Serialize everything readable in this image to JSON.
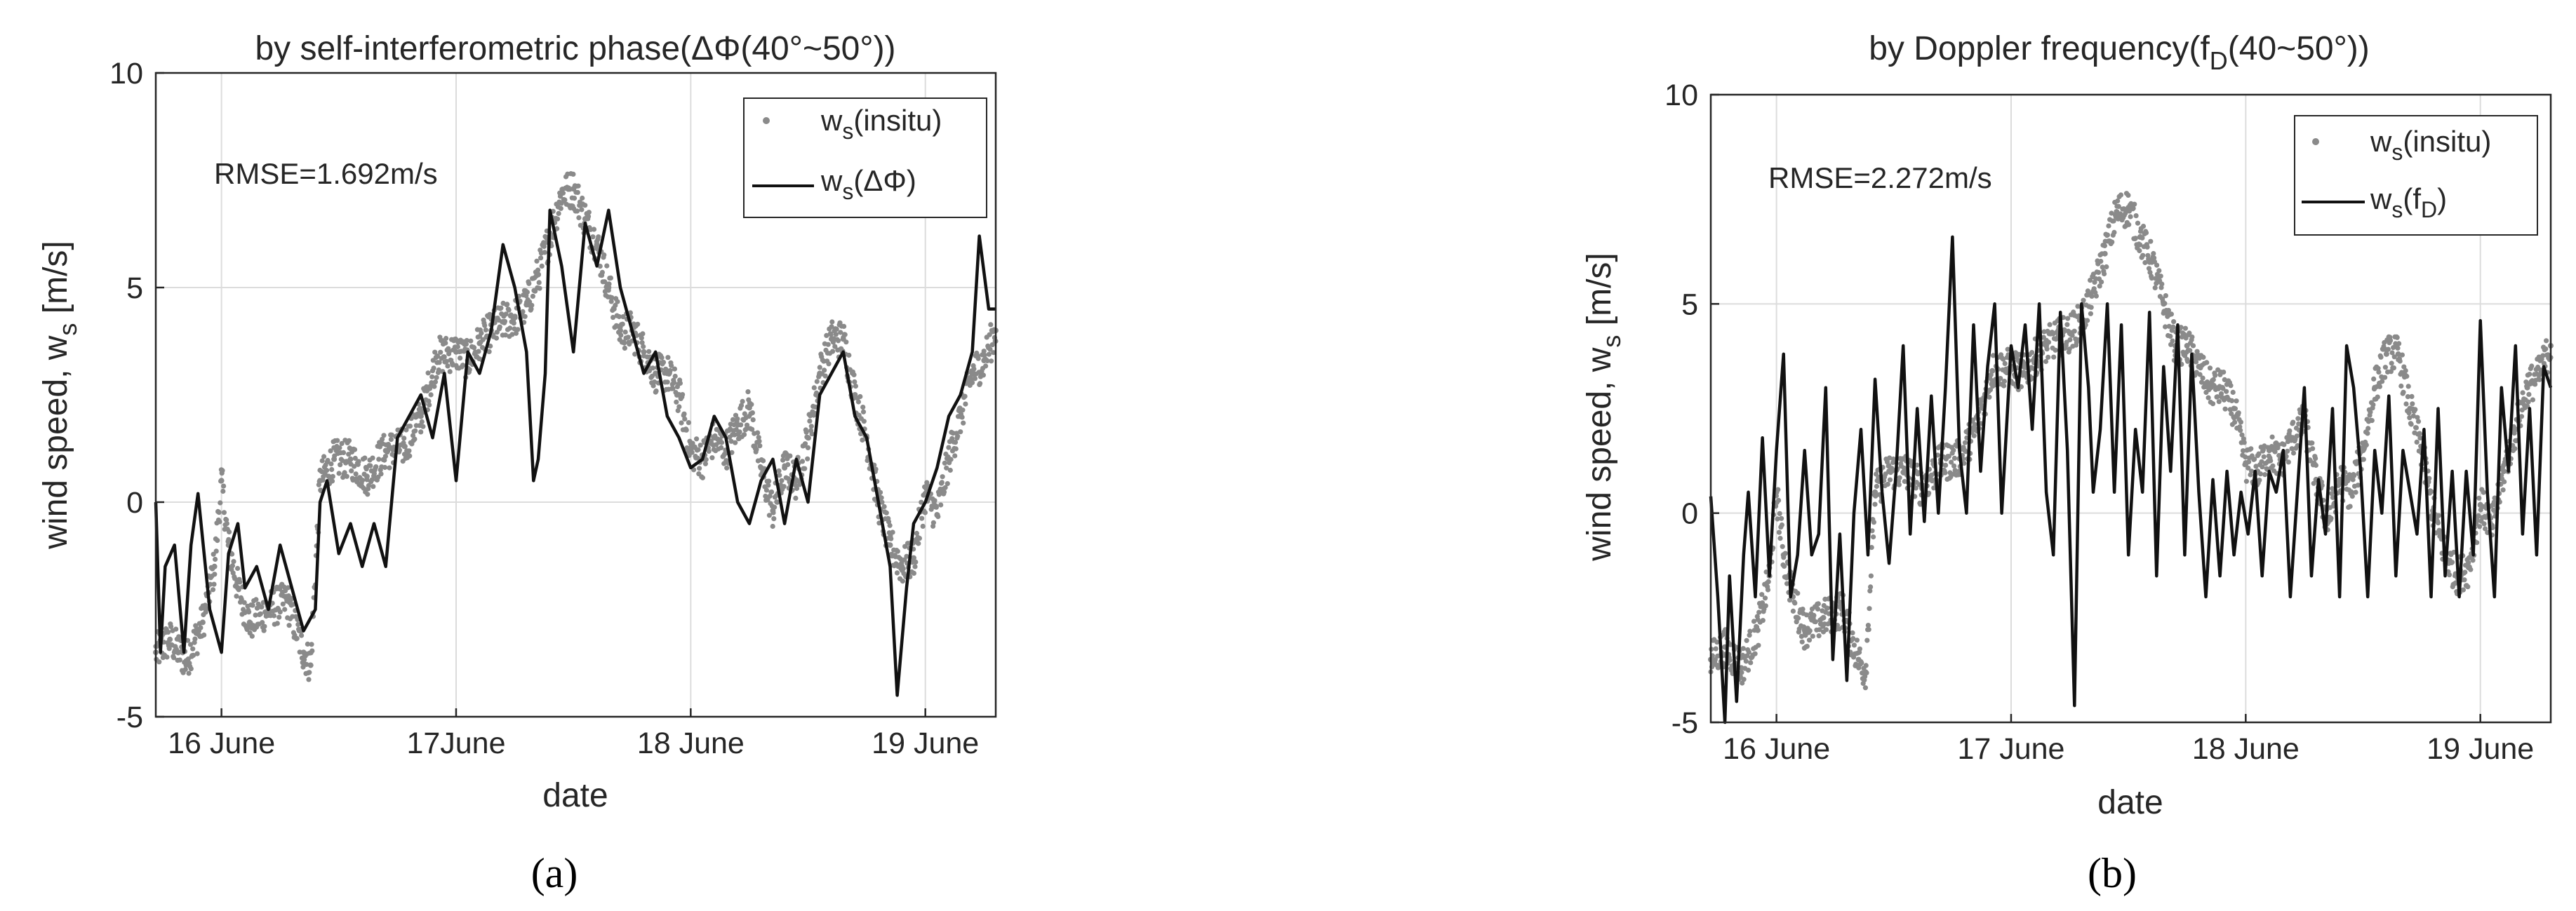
{
  "figure": {
    "panels": [
      {
        "caption": "(a)",
        "title": "by self-interferometric phase(ΔΦ(40°~50°))",
        "rmse": "RMSE=1.692m/s",
        "xlabel": "date",
        "ylabel": "wind speed, w",
        "ylabel_sub": "s",
        "ylabel_unit": " [m/s]",
        "legend": [
          {
            "main": "w",
            "sub": "s",
            "tail": "(insitu)"
          },
          {
            "main": "w",
            "sub": "s",
            "tail": "(ΔΦ)"
          }
        ]
      },
      {
        "caption": "(b)",
        "title": "by Doppler frequency(f",
        "title_sub": "D",
        "title_tail": "(40~50°))",
        "rmse": "RMSE=2.272m/s",
        "xlabel": "date",
        "ylabel": "wind speed, w",
        "ylabel_sub": "s",
        "ylabel_unit": " [m/s]",
        "legend": [
          {
            "main": "w",
            "sub": "s",
            "tail": "(insitu)"
          },
          {
            "main": "w",
            "sub": "s",
            "tail": "(f",
            "sub2": "D",
            "tail2": ")"
          }
        ]
      }
    ]
  },
  "chart_data": [
    {
      "type": "line",
      "title": "by self-interferometric phase(ΔΦ(40°~50°))",
      "xlabel": "date",
      "ylabel": "wind speed, ws [m/s]",
      "xlim": [
        15.72,
        19.3
      ],
      "ylim": [
        -5,
        10
      ],
      "x_ticks": [
        {
          "x": 16,
          "label": "16 June"
        },
        {
          "x": 17,
          "label": "17June"
        },
        {
          "x": 18,
          "label": "18 June"
        },
        {
          "x": 19,
          "label": "19 June"
        }
      ],
      "y_ticks": [
        {
          "y": -5,
          "label": "-5"
        },
        {
          "y": 0,
          "label": "0"
        },
        {
          "y": 5,
          "label": "5"
        },
        {
          "y": 10,
          "label": "10"
        }
      ],
      "grid": true,
      "legend_position": "top-right",
      "colors": {
        "insitu": "#8a8a8a",
        "retrieved": "#111111"
      },
      "series": [
        {
          "name": "ws(insitu)",
          "style": "scatter",
          "x": [
            15.72,
            15.78,
            15.85,
            15.92,
            15.97,
            16.0,
            16.03,
            16.07,
            16.12,
            16.2,
            16.28,
            16.35,
            16.38,
            16.42,
            16.48,
            16.55,
            16.62,
            16.7,
            16.78,
            16.85,
            16.92,
            17.0,
            17.05,
            17.1,
            17.15,
            17.2,
            17.25,
            17.3,
            17.35,
            17.4,
            17.45,
            17.5,
            17.55,
            17.6,
            17.65,
            17.7,
            17.75,
            17.8,
            17.85,
            17.9,
            17.95,
            18.0,
            18.05,
            18.1,
            18.15,
            18.2,
            18.25,
            18.3,
            18.35,
            18.4,
            18.45,
            18.5,
            18.55,
            18.6,
            18.65,
            18.7,
            18.75,
            18.8,
            18.85,
            18.9,
            18.95,
            19.0,
            19.05,
            19.1,
            19.15,
            19.2,
            19.25,
            19.3
          ],
          "y": [
            -3.5,
            -3.2,
            -3.7,
            -2.8,
            -1.5,
            0.5,
            -1.0,
            -2.0,
            -2.8,
            -2.5,
            -2.3,
            -3.5,
            -3.8,
            0.5,
            1.0,
            1.0,
            0.6,
            1.2,
            1.3,
            2.0,
            3.4,
            3.5,
            3.3,
            3.7,
            4.0,
            4.2,
            4.3,
            4.6,
            5.3,
            6.2,
            7.2,
            7.3,
            6.6,
            6.0,
            5.0,
            4.0,
            4.0,
            3.5,
            3.0,
            3.0,
            2.5,
            1.2,
            1.0,
            1.5,
            1.2,
            1.8,
            2.2,
            0.8,
            -0.2,
            0.8,
            0.5,
            1.5,
            3.0,
            3.8,
            3.8,
            2.5,
            1.5,
            0.0,
            -1.0,
            -1.5,
            -1.3,
            0.2,
            -0.3,
            1.0,
            2.0,
            3.0,
            3.3,
            4.0
          ]
        },
        {
          "name": "ws(ΔΦ)",
          "style": "line",
          "x": [
            15.72,
            15.74,
            15.76,
            15.8,
            15.84,
            15.87,
            15.9,
            15.95,
            16.0,
            16.03,
            16.07,
            16.1,
            16.15,
            16.2,
            16.25,
            16.3,
            16.35,
            16.4,
            16.42,
            16.45,
            16.5,
            16.55,
            16.6,
            16.65,
            16.7,
            16.75,
            16.8,
            16.85,
            16.9,
            16.95,
            17.0,
            17.05,
            17.1,
            17.15,
            17.2,
            17.25,
            17.3,
            17.33,
            17.35,
            17.38,
            17.4,
            17.45,
            17.5,
            17.55,
            17.6,
            17.65,
            17.7,
            17.75,
            17.8,
            17.85,
            17.9,
            17.95,
            18.0,
            18.05,
            18.1,
            18.15,
            18.2,
            18.25,
            18.3,
            18.35,
            18.4,
            18.45,
            18.5,
            18.55,
            18.6,
            18.65,
            18.7,
            18.75,
            18.8,
            18.85,
            18.88,
            18.92,
            18.95,
            19.0,
            19.05,
            19.1,
            19.15,
            19.2,
            19.23,
            19.27,
            19.3
          ],
          "y": [
            0.0,
            -3.5,
            -1.5,
            -1.0,
            -3.5,
            -1.0,
            0.2,
            -2.5,
            -3.5,
            -1.2,
            -0.5,
            -2.0,
            -1.5,
            -2.5,
            -1.0,
            -2.0,
            -3.0,
            -2.5,
            0.0,
            0.5,
            -1.2,
            -0.5,
            -1.5,
            -0.5,
            -1.5,
            1.5,
            2.0,
            2.5,
            1.5,
            3.0,
            0.5,
            3.5,
            3.0,
            4.0,
            6.0,
            5.0,
            3.5,
            0.5,
            1.0,
            3.0,
            6.8,
            5.5,
            3.5,
            6.5,
            5.5,
            6.8,
            5.0,
            4.0,
            3.0,
            3.5,
            2.0,
            1.5,
            0.8,
            1.0,
            2.0,
            1.5,
            0.0,
            -0.5,
            0.5,
            1.0,
            -0.5,
            1.0,
            0.0,
            2.5,
            3.0,
            3.5,
            2.0,
            1.5,
            0.0,
            -1.5,
            -4.5,
            -2.0,
            -0.5,
            0.0,
            0.8,
            2.0,
            2.5,
            3.5,
            6.2,
            4.5,
            4.5
          ]
        }
      ]
    },
    {
      "type": "line",
      "title": "by Doppler frequency(fD(40~50°))",
      "xlabel": "date",
      "ylabel": "wind speed, ws [m/s]",
      "xlim": [
        15.72,
        19.3
      ],
      "ylim": [
        -5,
        10
      ],
      "x_ticks": [
        {
          "x": 16,
          "label": "16 June"
        },
        {
          "x": 17,
          "label": "17 June"
        },
        {
          "x": 18,
          "label": "18 June"
        },
        {
          "x": 19,
          "label": "19 June"
        }
      ],
      "y_ticks": [
        {
          "y": -5,
          "label": "-5"
        },
        {
          "y": 0,
          "label": "0"
        },
        {
          "y": 5,
          "label": "5"
        },
        {
          "y": 10,
          "label": "10"
        }
      ],
      "grid": true,
      "legend_position": "top-right",
      "colors": {
        "insitu": "#8a8a8a",
        "retrieved": "#111111"
      },
      "series": [
        {
          "name": "ws(insitu)",
          "style": "scatter",
          "x": [
            15.72,
            15.78,
            15.85,
            15.92,
            15.97,
            16.0,
            16.03,
            16.07,
            16.12,
            16.2,
            16.28,
            16.35,
            16.38,
            16.42,
            16.48,
            16.55,
            16.62,
            16.7,
            16.78,
            16.85,
            16.92,
            17.0,
            17.05,
            17.1,
            17.15,
            17.2,
            17.25,
            17.3,
            17.35,
            17.4,
            17.45,
            17.5,
            17.55,
            17.6,
            17.65,
            17.7,
            17.75,
            17.8,
            17.85,
            17.9,
            17.95,
            18.0,
            18.05,
            18.1,
            18.15,
            18.2,
            18.25,
            18.3,
            18.35,
            18.4,
            18.45,
            18.5,
            18.55,
            18.6,
            18.65,
            18.7,
            18.75,
            18.8,
            18.85,
            18.9,
            18.95,
            19.0,
            19.05,
            19.1,
            19.15,
            19.2,
            19.25,
            19.3
          ],
          "y": [
            -3.5,
            -3.2,
            -3.7,
            -2.8,
            -1.5,
            0.5,
            -1.0,
            -2.0,
            -2.8,
            -2.5,
            -2.3,
            -3.5,
            -3.8,
            0.5,
            1.0,
            1.0,
            0.6,
            1.2,
            1.3,
            2.0,
            3.4,
            3.5,
            3.3,
            3.7,
            4.0,
            4.2,
            4.3,
            4.6,
            5.3,
            6.2,
            7.2,
            7.3,
            6.6,
            6.0,
            5.0,
            4.0,
            4.0,
            3.5,
            3.0,
            3.0,
            2.5,
            1.2,
            1.0,
            1.5,
            1.2,
            1.8,
            2.2,
            0.8,
            -0.2,
            0.8,
            0.5,
            1.5,
            3.0,
            3.8,
            3.8,
            2.5,
            1.5,
            0.0,
            -1.0,
            -1.5,
            -1.3,
            0.2,
            -0.3,
            1.0,
            2.0,
            3.0,
            3.3,
            4.0
          ]
        },
        {
          "name": "ws(fD)",
          "style": "line",
          "x": [
            15.72,
            15.75,
            15.78,
            15.8,
            15.83,
            15.86,
            15.88,
            15.91,
            15.94,
            15.97,
            16.0,
            16.03,
            16.06,
            16.09,
            16.12,
            16.15,
            16.18,
            16.21,
            16.24,
            16.27,
            16.3,
            16.33,
            16.36,
            16.39,
            16.42,
            16.45,
            16.48,
            16.51,
            16.54,
            16.57,
            16.6,
            16.63,
            16.66,
            16.69,
            16.72,
            16.75,
            16.78,
            16.81,
            16.84,
            16.87,
            16.9,
            16.93,
            16.96,
            17.0,
            17.03,
            17.06,
            17.09,
            17.12,
            17.15,
            17.18,
            17.21,
            17.24,
            17.27,
            17.3,
            17.33,
            17.35,
            17.38,
            17.41,
            17.44,
            17.47,
            17.5,
            17.53,
            17.56,
            17.59,
            17.62,
            17.65,
            17.68,
            17.71,
            17.74,
            17.77,
            17.8,
            17.83,
            17.86,
            17.89,
            17.92,
            17.95,
            17.98,
            18.01,
            18.04,
            18.07,
            18.1,
            18.13,
            18.16,
            18.19,
            18.22,
            18.25,
            18.28,
            18.31,
            18.34,
            18.37,
            18.4,
            18.43,
            18.46,
            18.49,
            18.52,
            18.55,
            18.58,
            18.61,
            18.64,
            18.67,
            18.7,
            18.73,
            18.76,
            18.79,
            18.82,
            18.85,
            18.88,
            18.91,
            18.94,
            18.97,
            19.0,
            19.03,
            19.06,
            19.09,
            19.12,
            19.15,
            19.18,
            19.21,
            19.24,
            19.27,
            19.3
          ],
          "y": [
            0.4,
            -2.0,
            -5.0,
            -1.5,
            -4.5,
            -1.0,
            0.5,
            -2.0,
            1.8,
            -1.5,
            1.5,
            3.8,
            -2.0,
            -1.0,
            1.5,
            -1.0,
            -0.5,
            3.0,
            -3.5,
            -0.5,
            -4.0,
            0.0,
            2.0,
            -1.0,
            3.2,
            0.5,
            -1.2,
            1.0,
            4.0,
            -0.5,
            2.5,
            -0.2,
            2.8,
            0.0,
            3.0,
            6.6,
            1.5,
            0.0,
            4.5,
            1.0,
            3.5,
            5.0,
            0.0,
            4.0,
            3.0,
            4.5,
            2.0,
            5.0,
            0.5,
            -1.0,
            4.8,
            1.5,
            -4.6,
            5.0,
            3.0,
            0.5,
            2.0,
            5.0,
            0.5,
            4.5,
            -1.0,
            2.0,
            0.5,
            4.8,
            -1.5,
            3.5,
            1.0,
            4.5,
            -1.0,
            3.8,
            0.5,
            -2.0,
            0.8,
            -1.5,
            1.0,
            -1.0,
            0.5,
            -0.5,
            1.0,
            -1.5,
            1.0,
            0.5,
            1.5,
            -2.0,
            0.5,
            3.0,
            -1.5,
            0.8,
            -0.5,
            2.5,
            -2.0,
            4.0,
            3.0,
            1.0,
            -2.0,
            1.5,
            0.0,
            2.8,
            -1.5,
            1.5,
            0.5,
            -0.5,
            2.0,
            -2.0,
            2.5,
            -1.5,
            1.0,
            -2.0,
            1.0,
            -1.0,
            4.6,
            0.5,
            -2.0,
            3.0,
            1.0,
            4.0,
            -0.5,
            2.5,
            -1.0,
            3.5,
            3.0
          ]
        }
      ]
    }
  ]
}
